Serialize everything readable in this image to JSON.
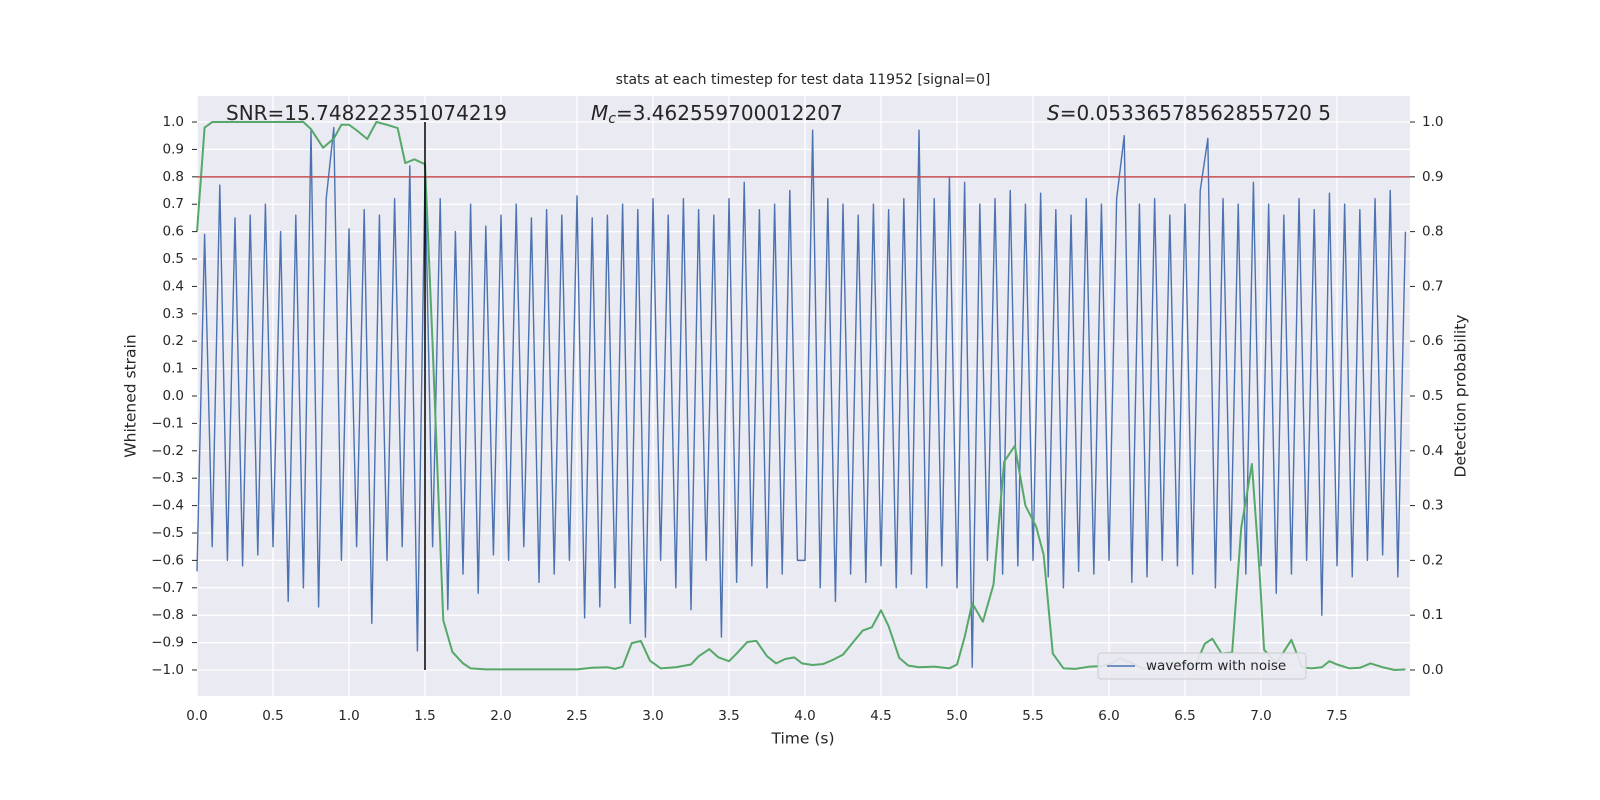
{
  "chart_data": {
    "type": "line",
    "title": "stats at each timestep for test data 11952 [signal=0]",
    "xlabel": "Time (s)",
    "ylabel": "Whitened strain",
    "y2label": "Detection probability",
    "annotations": [
      {
        "text": "SNR=15.748222351074219"
      },
      {
        "symbol": "M",
        "subscript": "c",
        "text": "=3.462559700012207"
      },
      {
        "symbol": "S",
        "text": "=0.05336578562855720 5"
      }
    ],
    "xlim": [
      0,
      7.98
    ],
    "ylim": [
      -1.095,
      1.095
    ],
    "y2lim": [
      -0.0475,
      1.0475
    ],
    "xticks": [
      {
        "value": 0,
        "label": "0.0"
      },
      {
        "value": 0.5,
        "label": "0.5"
      },
      {
        "value": 1,
        "label": "1.0"
      },
      {
        "value": 1.5,
        "label": "1.5"
      },
      {
        "value": 2,
        "label": "2.0"
      },
      {
        "value": 2.5,
        "label": "2.5"
      },
      {
        "value": 3,
        "label": "3.0"
      },
      {
        "value": 3.5,
        "label": "3.5"
      },
      {
        "value": 4,
        "label": "4.0"
      },
      {
        "value": 4.5,
        "label": "4.5"
      },
      {
        "value": 5,
        "label": "5.0"
      },
      {
        "value": 5.5,
        "label": "5.5"
      },
      {
        "value": 6,
        "label": "6.0"
      },
      {
        "value": 6.5,
        "label": "6.5"
      },
      {
        "value": 7,
        "label": "7.0"
      },
      {
        "value": 7.5,
        "label": "7.5"
      }
    ],
    "yticks": [
      {
        "value": 1,
        "label": "1.0"
      },
      {
        "value": 0.9,
        "label": "0.9"
      },
      {
        "value": 0.8,
        "label": "0.8"
      },
      {
        "value": 0.7,
        "label": "0.7"
      },
      {
        "value": 0.6,
        "label": "0.6"
      },
      {
        "value": 0.5,
        "label": "0.5"
      },
      {
        "value": 0.4,
        "label": "0.4"
      },
      {
        "value": 0.3,
        "label": "0.3"
      },
      {
        "value": 0.2,
        "label": "0.2"
      },
      {
        "value": 0.1,
        "label": "0.1"
      },
      {
        "value": 0,
        "label": "0.0"
      },
      {
        "value": -0.1,
        "label": "−0.1"
      },
      {
        "value": -0.2,
        "label": "−0.2"
      },
      {
        "value": -0.3,
        "label": "−0.3"
      },
      {
        "value": -0.4,
        "label": "−0.4"
      },
      {
        "value": -0.5,
        "label": "−0.5"
      },
      {
        "value": -0.6,
        "label": "−0.6"
      },
      {
        "value": -0.7,
        "label": "−0.7"
      },
      {
        "value": -0.8,
        "label": "−0.8"
      },
      {
        "value": -0.9,
        "label": "−0.9"
      },
      {
        "value": -1,
        "label": "−1.0"
      }
    ],
    "y2ticks": [
      {
        "value": 1,
        "label": "1.0"
      },
      {
        "value": 0.9,
        "label": "0.9"
      },
      {
        "value": 0.8,
        "label": "0.8"
      },
      {
        "value": 0.7,
        "label": "0.7"
      },
      {
        "value": 0.6,
        "label": "0.6"
      },
      {
        "value": 0.5,
        "label": "0.5"
      },
      {
        "value": 0.4,
        "label": "0.4"
      },
      {
        "value": 0.3,
        "label": "0.3"
      },
      {
        "value": 0.2,
        "label": "0.2"
      },
      {
        "value": 0.1,
        "label": "0.1"
      },
      {
        "value": 0,
        "label": "0.0"
      }
    ],
    "grid": true,
    "legend": "lower right",
    "hline": {
      "y": 0.8,
      "color": "#c44e52"
    },
    "vline": {
      "x": 1.5,
      "ymin": -1,
      "ymax": 1,
      "color": "#000000"
    },
    "series": [
      {
        "name": "waveform with noise",
        "color": "#4c72b0",
        "x": [
          0,
          0.05,
          0.1,
          0.15,
          0.2,
          0.25,
          0.3,
          0.35,
          0.4,
          0.45,
          0.5,
          0.55,
          0.6,
          0.65,
          0.7,
          0.75,
          0.8,
          0.85,
          0.9,
          0.95,
          1,
          1.05,
          1.1,
          1.15,
          1.2,
          1.25,
          1.3,
          1.35,
          1.4,
          1.45,
          1.5,
          1.55,
          1.6,
          1.65,
          1.7,
          1.75,
          1.8,
          1.85,
          1.9,
          1.95,
          2,
          2.05,
          2.1,
          2.15,
          2.2,
          2.25,
          2.3,
          2.35,
          2.4,
          2.45,
          2.5,
          2.55,
          2.6,
          2.65,
          2.7,
          2.75,
          2.8,
          2.85,
          2.9,
          2.95,
          3,
          3.05,
          3.1,
          3.15,
          3.2,
          3.25,
          3.3,
          3.35,
          3.4,
          3.45,
          3.5,
          3.55,
          3.6,
          3.65,
          3.7,
          3.75,
          3.8,
          3.85,
          3.9,
          3.95,
          4,
          4.05,
          4.1,
          4.15,
          4.2,
          4.25,
          4.3,
          4.35,
          4.4,
          4.45,
          4.5,
          4.55,
          4.6,
          4.65,
          4.7,
          4.75,
          4.8,
          4.85,
          4.9,
          4.95,
          5,
          5.05,
          5.1,
          5.15,
          5.2,
          5.25,
          5.3,
          5.35,
          5.4,
          5.45,
          5.5,
          5.55,
          5.6,
          5.65,
          5.7,
          5.75,
          5.8,
          5.85,
          5.9,
          5.95,
          6,
          6.05,
          6.1,
          6.15,
          6.2,
          6.25,
          6.3,
          6.35,
          6.4,
          6.45,
          6.5,
          6.55,
          6.6,
          6.65,
          6.7,
          6.75,
          6.8,
          6.85,
          6.9,
          6.95,
          7,
          7.05,
          7.1,
          7.15,
          7.2,
          7.25,
          7.3,
          7.35,
          7.4,
          7.45,
          7.5,
          7.55,
          7.6,
          7.65,
          7.7,
          7.75,
          7.8,
          7.85,
          7.9,
          7.95
        ],
        "values": [
          -0.64,
          0.59,
          -0.55,
          0.77,
          -0.6,
          0.65,
          -0.62,
          0.66,
          -0.58,
          0.7,
          -0.55,
          0.6,
          -0.75,
          0.66,
          -0.7,
          0.97,
          -0.77,
          0.72,
          0.98,
          -0.6,
          0.61,
          -0.55,
          0.68,
          -0.83,
          0.66,
          -0.6,
          0.72,
          -0.55,
          0.84,
          -0.93,
          0.8,
          -0.55,
          0.72,
          -0.78,
          0.6,
          -0.65,
          0.7,
          -0.72,
          0.62,
          -0.58,
          0.66,
          -0.6,
          0.7,
          -0.55,
          0.65,
          -0.68,
          0.68,
          -0.65,
          0.66,
          -0.6,
          0.73,
          -0.81,
          0.65,
          -0.77,
          0.66,
          -0.7,
          0.7,
          -0.83,
          0.68,
          -0.88,
          0.72,
          -0.6,
          0.66,
          -0.7,
          0.72,
          -0.78,
          0.68,
          -0.6,
          0.66,
          -0.88,
          0.72,
          -0.68,
          0.78,
          -0.62,
          0.68,
          -0.7,
          0.7,
          -0.65,
          0.75,
          -0.6,
          -0.6,
          0.97,
          -0.7,
          0.72,
          -0.75,
          0.7,
          -0.65,
          0.66,
          -0.68,
          0.7,
          -0.62,
          0.68,
          -0.7,
          0.72,
          -0.65,
          0.97,
          -0.7,
          0.72,
          -0.62,
          0.8,
          -0.7,
          0.78,
          -0.99,
          0.7,
          -0.6,
          0.72,
          -0.65,
          0.75,
          -0.62,
          0.7,
          -0.6,
          0.74,
          -0.66,
          0.68,
          -0.7,
          0.66,
          -0.64,
          0.72,
          -0.65,
          0.7,
          -0.6,
          0.72,
          0.95,
          -0.68,
          0.7,
          -0.66,
          0.72,
          -0.6,
          0.66,
          -0.62,
          0.7,
          -0.65,
          0.75,
          0.94,
          -0.7,
          0.72,
          -0.6,
          0.7,
          -0.65,
          0.78,
          -0.62,
          0.7,
          -0.72,
          0.66,
          -0.65,
          0.72,
          -0.6,
          0.68,
          -0.8,
          0.74,
          -0.62,
          0.7,
          -0.66,
          0.68,
          -0.6,
          0.72,
          -0.58,
          0.75,
          -0.66,
          0.6
        ]
      },
      {
        "color": "#55a868",
        "axis": "y2",
        "x": [
          0,
          0.05,
          0.1,
          0.7,
          0.75,
          0.83,
          0.9,
          0.95,
          1.0,
          1.05,
          1.12,
          1.18,
          1.25,
          1.32,
          1.37,
          1.43,
          1.5,
          1.55,
          1.62,
          1.68,
          1.75,
          1.8,
          1.9,
          2.2,
          2.5,
          2.6,
          2.7,
          2.75,
          2.8,
          2.86,
          2.92,
          2.98,
          3.05,
          3.15,
          3.25,
          3.3,
          3.37,
          3.43,
          3.5,
          3.55,
          3.62,
          3.68,
          3.75,
          3.81,
          3.87,
          3.93,
          3.98,
          4.05,
          4.12,
          4.18,
          4.25,
          4.32,
          4.38,
          4.44,
          4.5,
          4.55,
          4.62,
          4.68,
          4.75,
          4.85,
          4.95,
          5.0,
          5.05,
          5.1,
          5.17,
          5.24,
          5.31,
          5.38,
          5.45,
          5.52,
          5.57,
          5.63,
          5.7,
          5.78,
          5.87,
          5.95,
          6.02,
          6.07,
          6.14,
          6.22,
          6.3,
          6.38,
          6.45,
          6.5,
          6.57,
          6.63,
          6.68,
          6.74,
          6.81,
          6.87,
          6.94,
          6.99,
          7.02,
          7.1,
          7.2,
          7.27,
          7.33,
          7.4,
          7.45,
          7.5,
          7.58,
          7.65,
          7.72,
          7.8,
          7.88,
          7.95
        ],
        "values": [
          0.8,
          0.99,
          1.0,
          1.0,
          0.987,
          0.953,
          0.97,
          0.995,
          0.995,
          0.985,
          0.969,
          1.0,
          0.995,
          0.989,
          0.925,
          0.932,
          0.923,
          0.593,
          0.091,
          0.033,
          0.012,
          0.003,
          0.001,
          0.001,
          0.001,
          0.004,
          0.005,
          0.002,
          0.006,
          0.049,
          0.053,
          0.017,
          0.003,
          0.005,
          0.01,
          0.025,
          0.038,
          0.023,
          0.016,
          0.03,
          0.051,
          0.053,
          0.025,
          0.012,
          0.02,
          0.023,
          0.012,
          0.009,
          0.011,
          0.018,
          0.028,
          0.052,
          0.072,
          0.078,
          0.109,
          0.08,
          0.022,
          0.008,
          0.005,
          0.006,
          0.003,
          0.01,
          0.06,
          0.122,
          0.088,
          0.156,
          0.38,
          0.409,
          0.3,
          0.262,
          0.21,
          0.03,
          0.003,
          0.002,
          0.006,
          0.007,
          0.012,
          0.022,
          0.014,
          0.003,
          0.004,
          0.012,
          0.014,
          0.008,
          0.009,
          0.048,
          0.057,
          0.03,
          0.032,
          0.26,
          0.376,
          0.18,
          0.037,
          0.012,
          0.055,
          0.005,
          0.003,
          0.005,
          0.016,
          0.01,
          0.003,
          0.004,
          0.012,
          0.005,
          0.0,
          0.001
        ]
      }
    ]
  }
}
